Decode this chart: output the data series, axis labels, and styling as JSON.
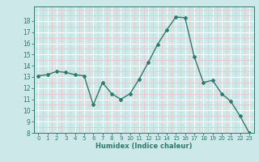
{
  "x": [
    0,
    1,
    2,
    3,
    4,
    5,
    6,
    7,
    8,
    9,
    10,
    11,
    12,
    13,
    14,
    15,
    16,
    17,
    18,
    19,
    20,
    21,
    22,
    23
  ],
  "y": [
    13.1,
    13.2,
    13.5,
    13.4,
    13.2,
    13.1,
    10.5,
    12.5,
    11.5,
    11.0,
    11.5,
    12.8,
    14.3,
    15.9,
    17.2,
    18.35,
    18.3,
    14.8,
    12.5,
    12.7,
    11.5,
    10.8,
    9.5,
    8.0
  ],
  "xlabel": "Humidex (Indice chaleur)",
  "ylim": [
    8,
    19
  ],
  "yticks": [
    8,
    9,
    10,
    11,
    12,
    13,
    14,
    15,
    16,
    17,
    18
  ],
  "xticks": [
    0,
    1,
    2,
    3,
    4,
    5,
    6,
    7,
    8,
    9,
    10,
    11,
    12,
    13,
    14,
    15,
    16,
    17,
    18,
    19,
    20,
    21,
    22,
    23
  ],
  "line_color": "#2d7a6e",
  "marker_color": "#2d7a6e",
  "bg_color": "#cce8e8",
  "grid_major_color": "#ffffff",
  "grid_minor_color": "#e8c8c8"
}
